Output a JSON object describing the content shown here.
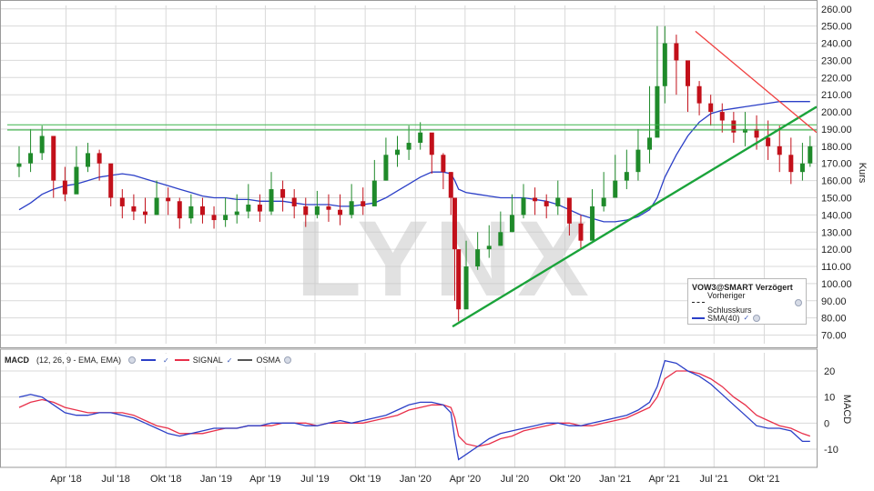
{
  "price_chart": {
    "ylabel": "Kurs",
    "watermark": "LYNX",
    "legend": {
      "title": "VOW3@SMART Verzögert",
      "items": [
        "Vorheriger Schlusskurs",
        "SMA(40)"
      ]
    }
  },
  "macd_panel": {
    "title": "MACD",
    "params": "(12, 26, 9 - EMA, EMA)",
    "legend": [
      "SIGNAL",
      "OSMA"
    ],
    "ylabel": "MACD"
  },
  "colors": {
    "candle_up": "#1f8a2a",
    "candle_down": "#c2101a",
    "sma": "#2b3fc7",
    "macd": "#2b3fc7",
    "signal": "#e8304a",
    "trend_green": "#1aa33a",
    "trend_red": "#f04040",
    "hline_green": "#3cb34a",
    "grid": "#d9d9d9"
  },
  "chart_data": [
    {
      "type": "candlestick",
      "title": "",
      "ylabel": "Kurs",
      "ylim": [
        65,
        262
      ],
      "yticks": [
        "260.00",
        "250.00",
        "240.00",
        "230.00",
        "220.00",
        "210.00",
        "200.00",
        "190.00",
        "180.00",
        "170.00",
        "160.00",
        "150.00",
        "140.00",
        "130.00",
        "120.00",
        "110.00",
        "100.00",
        "90.00",
        "80.00",
        "70.00"
      ],
      "xticks": [
        "Apr '18",
        "Jul '18",
        "Okt '18",
        "Jan '19",
        "Apr '19",
        "Jul '19",
        "Okt '19",
        "Jan '20",
        "Apr '20",
        "Jul '20",
        "Okt '20",
        "Jan '21",
        "Apr '21",
        "Jul '21",
        "Okt '21"
      ],
      "x": [
        "2018-01-05",
        "2018-01-26",
        "2018-02-16",
        "2018-03-09",
        "2018-03-30",
        "2018-04-20",
        "2018-05-11",
        "2018-06-01",
        "2018-06-22",
        "2018-07-13",
        "2018-08-03",
        "2018-08-24",
        "2018-09-14",
        "2018-10-05",
        "2018-10-26",
        "2018-11-16",
        "2018-12-07",
        "2018-12-28",
        "2019-01-18",
        "2019-02-08",
        "2019-03-01",
        "2019-03-22",
        "2019-04-12",
        "2019-05-03",
        "2019-05-24",
        "2019-06-14",
        "2019-07-05",
        "2019-07-26",
        "2019-08-16",
        "2019-09-06",
        "2019-09-27",
        "2019-10-18",
        "2019-11-08",
        "2019-11-29",
        "2019-12-20",
        "2020-01-10",
        "2020-01-31",
        "2020-02-21",
        "2020-03-06",
        "2020-03-13",
        "2020-03-20",
        "2020-04-03",
        "2020-04-24",
        "2020-05-15",
        "2020-06-05",
        "2020-06-26",
        "2020-07-17",
        "2020-08-07",
        "2020-08-28",
        "2020-09-18",
        "2020-10-09",
        "2020-10-30",
        "2020-11-20",
        "2020-12-11",
        "2021-01-01",
        "2021-01-22",
        "2021-02-12",
        "2021-03-05",
        "2021-03-19",
        "2021-04-02",
        "2021-04-23",
        "2021-05-14",
        "2021-06-04",
        "2021-06-25",
        "2021-07-16",
        "2021-08-06",
        "2021-08-27",
        "2021-09-17",
        "2021-10-08",
        "2021-10-29",
        "2021-11-19",
        "2021-12-10",
        "2021-12-24"
      ],
      "close": [
        170,
        176,
        186,
        160,
        152,
        168,
        176,
        170,
        150,
        145,
        142,
        140,
        150,
        148,
        138,
        145,
        140,
        137,
        140,
        142,
        146,
        142,
        155,
        150,
        145,
        140,
        145,
        143,
        140,
        148,
        145,
        160,
        175,
        178,
        182,
        188,
        175,
        165,
        150,
        120,
        85,
        110,
        120,
        122,
        130,
        140,
        150,
        148,
        145,
        150,
        135,
        125,
        145,
        150,
        160,
        165,
        178,
        185,
        215,
        240,
        230,
        215,
        205,
        200,
        195,
        188,
        190,
        185,
        180,
        175,
        165,
        170,
        180
      ],
      "high": [
        180,
        190,
        192,
        172,
        168,
        180,
        182,
        178,
        160,
        155,
        152,
        150,
        160,
        156,
        150,
        152,
        150,
        145,
        150,
        152,
        158,
        152,
        165,
        160,
        155,
        150,
        154,
        152,
        152,
        158,
        156,
        172,
        185,
        186,
        192,
        194,
        185,
        176,
        165,
        150,
        120,
        125,
        130,
        134,
        142,
        152,
        158,
        156,
        152,
        160,
        148,
        140,
        155,
        165,
        175,
        178,
        190,
        215,
        250,
        250,
        245,
        225,
        218,
        210,
        205,
        200,
        200,
        198,
        195,
        192,
        185,
        182,
        186
      ],
      "low": [
        162,
        165,
        172,
        150,
        148,
        155,
        165,
        160,
        145,
        138,
        137,
        135,
        140,
        140,
        132,
        135,
        135,
        132,
        133,
        135,
        138,
        136,
        140,
        142,
        138,
        133,
        138,
        136,
        134,
        138,
        140,
        148,
        160,
        168,
        172,
        178,
        164,
        155,
        140,
        90,
        78,
        92,
        108,
        115,
        122,
        130,
        138,
        140,
        138,
        140,
        128,
        120,
        130,
        142,
        150,
        155,
        160,
        170,
        195,
        205,
        210,
        200,
        198,
        192,
        188,
        182,
        180,
        178,
        172,
        165,
        158,
        160,
        168
      ]
    },
    {
      "type": "line",
      "title": "",
      "series": [
        {
          "name": "SMA(40)",
          "values": [
            143,
            147,
            152,
            155,
            157,
            158,
            160,
            162,
            163,
            164,
            163,
            161,
            159,
            157,
            155,
            153,
            151,
            150,
            150,
            149,
            149,
            148,
            148,
            148,
            147,
            146,
            146,
            146,
            145,
            145,
            146,
            147,
            150,
            154,
            158,
            162,
            165,
            165,
            164,
            160,
            155,
            153,
            152,
            151,
            150,
            150,
            150,
            149,
            148,
            146,
            143,
            140,
            138,
            136,
            136,
            137,
            139,
            143,
            150,
            162,
            175,
            186,
            194,
            199,
            201,
            202,
            203,
            204,
            205,
            206,
            206,
            206,
            206
          ]
        }
      ]
    },
    {
      "type": "line",
      "title": "",
      "ylabel": "MACD",
      "ylim": [
        -17,
        27
      ],
      "yticks": [
        "20",
        "10",
        "0",
        "-10"
      ],
      "series": [
        {
          "name": "",
          "values": [
            10,
            11,
            10,
            7,
            4,
            3,
            3,
            4,
            4,
            3,
            2,
            0,
            -2,
            -4,
            -5,
            -4,
            -3,
            -2,
            -2,
            -2,
            -1,
            -1,
            0,
            0,
            0,
            -1,
            -1,
            0,
            1,
            0,
            1,
            2,
            3,
            5,
            7,
            8,
            8,
            7,
            4,
            -6,
            -14,
            -12,
            -9,
            -6,
            -4,
            -3,
            -2,
            -1,
            0,
            0,
            -1,
            -1,
            0,
            1,
            2,
            3,
            5,
            8,
            14,
            24,
            23,
            20,
            18,
            15,
            11,
            7,
            3,
            -1,
            -2,
            -2,
            -3,
            -7,
            -7
          ]
        },
        {
          "name": "SIGNAL",
          "values": [
            6,
            8,
            9,
            8,
            6,
            5,
            4,
            4,
            4,
            4,
            3,
            1,
            -1,
            -2,
            -4,
            -4,
            -4,
            -3,
            -2,
            -2,
            -1,
            -1,
            -1,
            0,
            0,
            0,
            -1,
            0,
            0,
            0,
            0,
            1,
            2,
            3,
            5,
            6,
            7,
            7,
            6,
            2,
            -5,
            -8,
            -9,
            -8,
            -6,
            -5,
            -3,
            -2,
            -1,
            0,
            0,
            -1,
            -1,
            0,
            1,
            2,
            4,
            6,
            10,
            17,
            20,
            20,
            19,
            17,
            14,
            10,
            7,
            3,
            1,
            -1,
            -2,
            -4,
            -5
          ]
        }
      ]
    }
  ]
}
